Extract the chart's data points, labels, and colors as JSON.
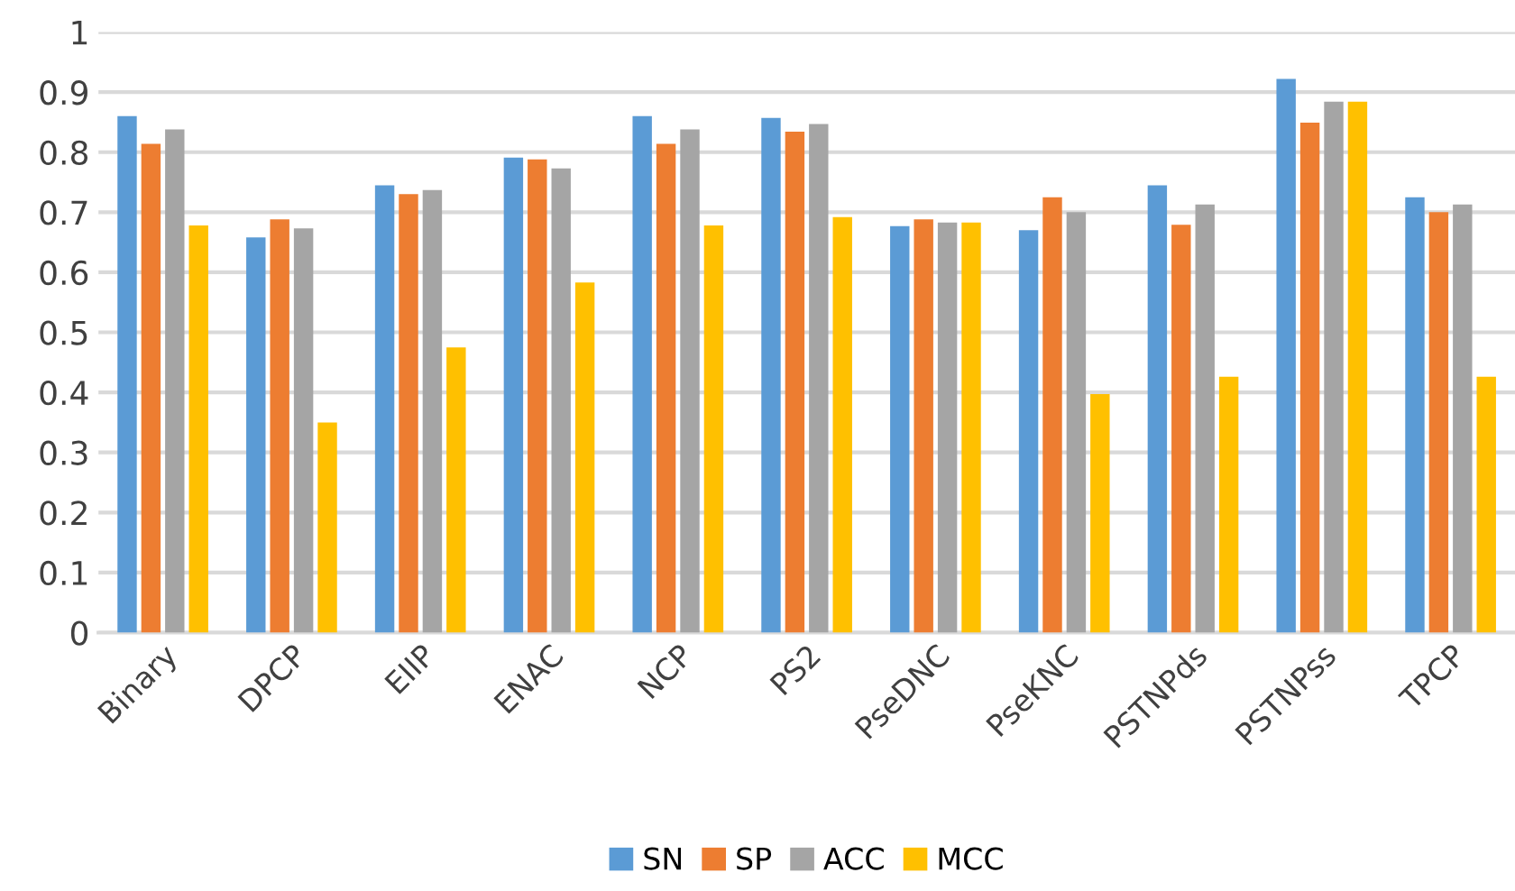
{
  "chart_data": {
    "type": "bar",
    "categories": [
      "Binary",
      "DPCP",
      "EIIP",
      "ENAC",
      "NCP",
      "PS2",
      "PseDNC",
      "PseKNC",
      "PSTNPds",
      "PSTNPss",
      "TPCP"
    ],
    "series": [
      {
        "name": "SN",
        "color": "#5b9bd5",
        "values": [
          0.86,
          0.658,
          0.745,
          0.791,
          0.86,
          0.857,
          0.677,
          0.67,
          0.745,
          0.922,
          0.725
        ]
      },
      {
        "name": "SP",
        "color": "#ed7d31",
        "values": [
          0.814,
          0.688,
          0.73,
          0.788,
          0.814,
          0.834,
          0.688,
          0.725,
          0.679,
          0.849,
          0.7
        ]
      },
      {
        "name": "ACC",
        "color": "#a5a5a5",
        "values": [
          0.838,
          0.673,
          0.737,
          0.773,
          0.838,
          0.847,
          0.683,
          0.7,
          0.713,
          0.884,
          0.713
        ]
      },
      {
        "name": "MCC",
        "color": "#ffc000",
        "values": [
          0.678,
          0.35,
          0.475,
          0.583,
          0.678,
          0.692,
          0.683,
          0.397,
          0.426,
          0.884,
          0.426
        ]
      }
    ],
    "ylim": [
      0,
      1
    ],
    "yticks": [
      0,
      0.1,
      0.2,
      0.3,
      0.4,
      0.5,
      0.6,
      0.7,
      0.8,
      0.9,
      1
    ],
    "grid": "y",
    "legend": "bottom"
  }
}
